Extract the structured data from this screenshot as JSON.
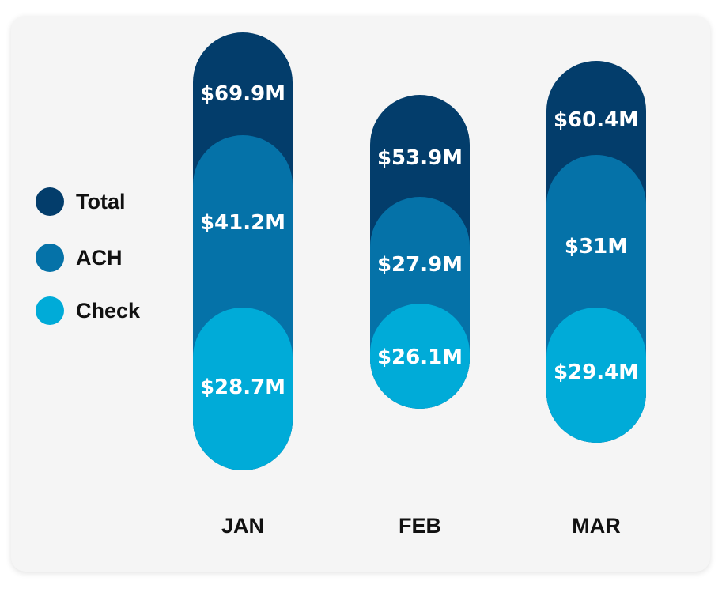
{
  "chart_data": {
    "type": "bar",
    "categories": [
      "JAN",
      "FEB",
      "MAR"
    ],
    "series": [
      {
        "name": "Total",
        "values": [
          69.9,
          53.9,
          60.4
        ],
        "labels": [
          "$69.9M",
          "$53.9M",
          "$60.4M"
        ],
        "color": "#033d6b"
      },
      {
        "name": "ACH",
        "values": [
          41.2,
          27.9,
          31
        ],
        "labels": [
          "$41.2M",
          "$27.9M",
          "$31M"
        ],
        "color": "#0572a8"
      },
      {
        "name": "Check",
        "values": [
          28.7,
          26.1,
          29.4
        ],
        "labels": [
          "$28.7M",
          "$26.1M",
          "$29.4M"
        ],
        "color": "#00abd8"
      }
    ],
    "legend_position": "left",
    "grid": false
  }
}
